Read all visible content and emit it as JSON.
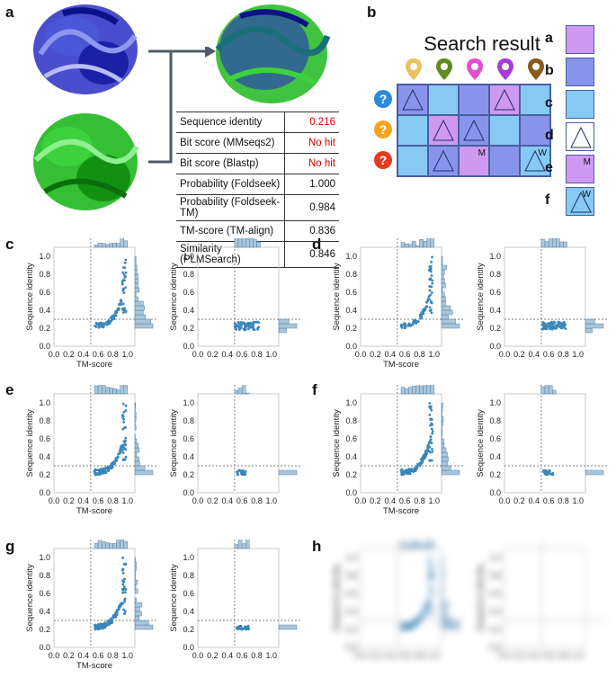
{
  "panels": {
    "a": "a",
    "b": "b",
    "c": "c",
    "d": "d",
    "e": "e",
    "f": "f",
    "g": "g",
    "h": "h"
  },
  "metrics": [
    {
      "label": "Sequence identity",
      "value": "0.216",
      "highlight": true
    },
    {
      "label": "Bit score (MMseqs2)",
      "value": "No hit",
      "highlight": true
    },
    {
      "label": "Bit score (Blastp)",
      "value": "No hit",
      "highlight": true
    },
    {
      "label": "Probability (Foldseek)",
      "value": "1.000",
      "highlight": false
    },
    {
      "label": "Probability (Foldseek-TM)",
      "value": "0.984",
      "highlight": false
    },
    {
      "label": "TM-score (TM-align)",
      "value": "0.836",
      "highlight": false
    },
    {
      "label": "Similarity (PLMSearch)",
      "value": "0.846",
      "highlight": false
    }
  ],
  "search": {
    "title": "Search result",
    "pin_colors": [
      "#e8c35e",
      "#5e8b1f",
      "#e04fd0",
      "#a83ad6",
      "#8a5a1a"
    ],
    "query_colors": [
      "#2b8ad9",
      "#f5a323",
      "#e43b22"
    ],
    "query_symbol": "?",
    "rows": [
      [
        {
          "c": "b",
          "tri": true
        },
        {
          "c": "c"
        },
        {
          "c": "b"
        },
        {
          "c": "a",
          "tri": true
        },
        {
          "c": "c"
        }
      ],
      [
        {
          "c": "c"
        },
        {
          "c": "a",
          "tri": true
        },
        {
          "c": "b",
          "tri": true
        },
        {
          "c": "c"
        },
        {
          "c": "b"
        }
      ],
      [
        {
          "c": "c"
        },
        {
          "c": "b",
          "tri": true
        },
        {
          "c": "a",
          "m": "M"
        },
        {
          "c": "b"
        },
        {
          "c": "c",
          "tri": true,
          "m": "W"
        }
      ]
    ],
    "legend": [
      {
        "letter": "a",
        "c": "a"
      },
      {
        "letter": "b",
        "c": "b"
      },
      {
        "letter": "c",
        "c": "c"
      },
      {
        "letter": "d",
        "c": "w",
        "tri": true
      },
      {
        "letter": "e",
        "c": "a",
        "m": "M"
      },
      {
        "letter": "f",
        "c": "c",
        "tri": true,
        "m": "W"
      }
    ]
  },
  "colors": {
    "a": "#cf99f2",
    "b": "#8894ec",
    "c": "#86caf4",
    "w": "#ffffff",
    "scatter": "#3b86b9"
  },
  "axes": {
    "xlabel": "TM-score",
    "ylabel": "Sequence identity",
    "xticks": [
      "0.0",
      "0.2",
      "0.4",
      "0.6",
      "0.8",
      "1.0"
    ],
    "yticks": [
      "0.0",
      "0.2",
      "0.4",
      "0.6",
      "0.8",
      "1.0"
    ],
    "xlim": [
      0,
      1.1
    ],
    "ylim": [
      0,
      1.1
    ],
    "ref_x": 0.5,
    "ref_y": 0.3
  },
  "chart_data": [
    {
      "type": "scatter",
      "panel": "c",
      "variant": "left",
      "xlabel": "TM-score",
      "ylabel": "Sequence identity",
      "xlim": [
        0,
        1.1
      ],
      "ylim": [
        0,
        1.1
      ]
    },
    {
      "type": "scatter",
      "panel": "c",
      "variant": "right",
      "xlabel": "",
      "ylabel": "Sequence identity",
      "xlim": [
        0,
        1.1
      ],
      "ylim": [
        0,
        1.1
      ]
    },
    {
      "type": "scatter",
      "panel": "d",
      "variant": "left",
      "xlabel": "TM-score",
      "ylabel": "Sequence identity",
      "xlim": [
        0,
        1.1
      ],
      "ylim": [
        0,
        1.1
      ]
    },
    {
      "type": "scatter",
      "panel": "d",
      "variant": "right",
      "xlabel": "",
      "ylabel": "Sequence identity",
      "xlim": [
        0,
        1.1
      ],
      "ylim": [
        0,
        1.1
      ]
    },
    {
      "type": "scatter",
      "panel": "e",
      "variant": "left2",
      "xlabel": "TM-score",
      "ylabel": "Sequence identity",
      "xlim": [
        0,
        1.1
      ],
      "ylim": [
        0,
        1.1
      ]
    },
    {
      "type": "scatter",
      "panel": "e",
      "variant": "right2",
      "xlabel": "",
      "ylabel": "Sequence identity",
      "xlim": [
        0,
        1.1
      ],
      "ylim": [
        0,
        1.1
      ]
    },
    {
      "type": "scatter",
      "panel": "f",
      "variant": "left2",
      "xlabel": "TM-score",
      "ylabel": "Sequence identity",
      "xlim": [
        0,
        1.1
      ],
      "ylim": [
        0,
        1.1
      ]
    },
    {
      "type": "scatter",
      "panel": "f",
      "variant": "right2",
      "xlabel": "",
      "ylabel": "Sequence identity",
      "xlim": [
        0,
        1.1
      ],
      "ylim": [
        0,
        1.1
      ]
    },
    {
      "type": "scatter",
      "panel": "g",
      "variant": "left2",
      "xlabel": "TM-score",
      "ylabel": "Sequence identity",
      "xlim": [
        0,
        1.1
      ],
      "ylim": [
        0,
        1.1
      ]
    },
    {
      "type": "scatter",
      "panel": "g",
      "variant": "right3",
      "xlabel": "",
      "ylabel": "Sequence identity",
      "xlim": [
        0,
        1.1
      ],
      "ylim": [
        0,
        1.1
      ]
    },
    {
      "type": "scatter",
      "panel": "h",
      "variant": "left2",
      "xlabel": "",
      "ylabel": "Sequence identity",
      "xlim": [
        0,
        1.1
      ],
      "ylim": [
        0,
        1.1
      ],
      "blurred": true
    },
    {
      "type": "scatter",
      "panel": "h",
      "variant": "right4",
      "xlabel": "",
      "ylabel": "Sequence identity",
      "xlim": [
        0,
        1.1
      ],
      "ylim": [
        0,
        1.1
      ],
      "blurred": true
    }
  ]
}
